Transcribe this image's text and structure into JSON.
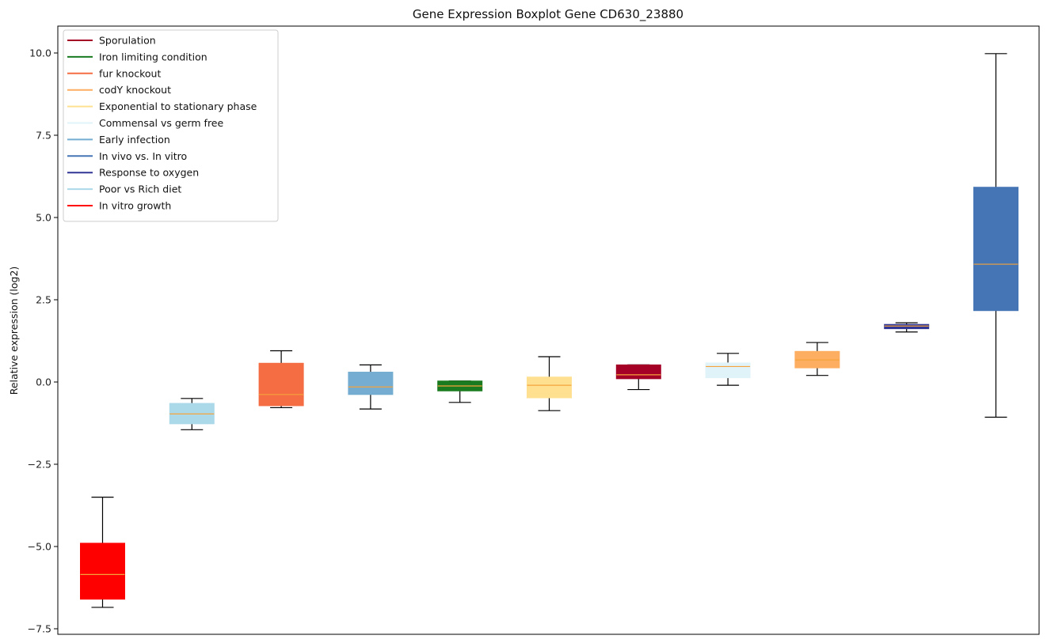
{
  "chart_data": {
    "type": "boxplot",
    "title": "Gene Expression Boxplot Gene CD630_23880",
    "xlabel": "",
    "ylabel": "Relative expression (log2)",
    "ylim": [
      -7.75,
      10.8
    ],
    "yticks": [
      -7.5,
      -5.0,
      -2.5,
      0.0,
      2.5,
      5.0,
      7.5,
      10.0
    ],
    "ytick_labels": [
      "−7.5",
      "−5.0",
      "−2.5",
      "0.0",
      "2.5",
      "5.0",
      "7.5",
      "10.0"
    ],
    "legend_position": "top-left",
    "grid": false,
    "median_color": "#f5a33c",
    "legend": [
      {
        "label": "Sporulation",
        "color": "#a50026"
      },
      {
        "label": "Iron limiting condition",
        "color": "#1a7a1f"
      },
      {
        "label": "fur knockout",
        "color": "#f46d43"
      },
      {
        "label": "codY knockout",
        "color": "#fdae61"
      },
      {
        "label": "Exponential to stationary phase",
        "color": "#fee090"
      },
      {
        "label": "Commensal vs germ free",
        "color": "#e0f3f8"
      },
      {
        "label": "Early infection",
        "color": "#74add1"
      },
      {
        "label": "In vivo vs. In vitro",
        "color": "#4575b4"
      },
      {
        "label": "Response to oxygen",
        "color": "#313695"
      },
      {
        "label": "Poor vs Rich diet",
        "color": "#abd9e9"
      },
      {
        "label": "In vitro growth",
        "color": "#ff0000"
      }
    ],
    "boxes": [
      {
        "group": "In vitro growth",
        "color": "#ff0000",
        "whisker_low": -6.85,
        "q1": -6.6,
        "median": -5.85,
        "q3": -4.9,
        "whisker_high": -3.5
      },
      {
        "group": "Poor vs Rich diet",
        "color": "#abd9e9",
        "whisker_low": -1.45,
        "q1": -1.27,
        "median": -0.97,
        "q3": -0.65,
        "whisker_high": -0.5
      },
      {
        "group": "fur knockout",
        "color": "#f46d43",
        "whisker_low": -0.78,
        "q1": -0.72,
        "median": -0.38,
        "q3": 0.57,
        "whisker_high": 0.95
      },
      {
        "group": "Early infection",
        "color": "#74add1",
        "whisker_low": -0.82,
        "q1": -0.38,
        "median": -0.15,
        "q3": 0.3,
        "whisker_high": 0.52
      },
      {
        "group": "Iron limiting condition",
        "color": "#1a7a1f",
        "whisker_low": -0.62,
        "q1": -0.27,
        "median": -0.12,
        "q3": 0.03,
        "whisker_high": 0.03
      },
      {
        "group": "Exponential to stationary phase",
        "color": "#fee090",
        "whisker_low": -0.87,
        "q1": -0.48,
        "median": -0.1,
        "q3": 0.15,
        "whisker_high": 0.77
      },
      {
        "group": "Sporulation",
        "color": "#a50026",
        "whisker_low": -0.23,
        "q1": 0.1,
        "median": 0.22,
        "q3": 0.52,
        "whisker_high": 0.52
      },
      {
        "group": "Commensal vs germ free",
        "color": "#e0f3f8",
        "whisker_low": -0.1,
        "q1": 0.13,
        "median": 0.47,
        "q3": 0.58,
        "whisker_high": 0.87
      },
      {
        "group": "codY knockout",
        "color": "#fdae61",
        "whisker_low": 0.2,
        "q1": 0.43,
        "median": 0.67,
        "q3": 0.93,
        "whisker_high": 1.2
      },
      {
        "group": "Response to oxygen",
        "color": "#313695",
        "whisker_low": 1.52,
        "q1": 1.62,
        "median": 1.7,
        "q3": 1.75,
        "whisker_high": 1.8
      },
      {
        "group": "In vivo vs. In vitro",
        "color": "#4575b4",
        "whisker_low": -1.07,
        "q1": 2.17,
        "median": 3.58,
        "q3": 5.92,
        "whisker_high": 9.98
      }
    ]
  }
}
